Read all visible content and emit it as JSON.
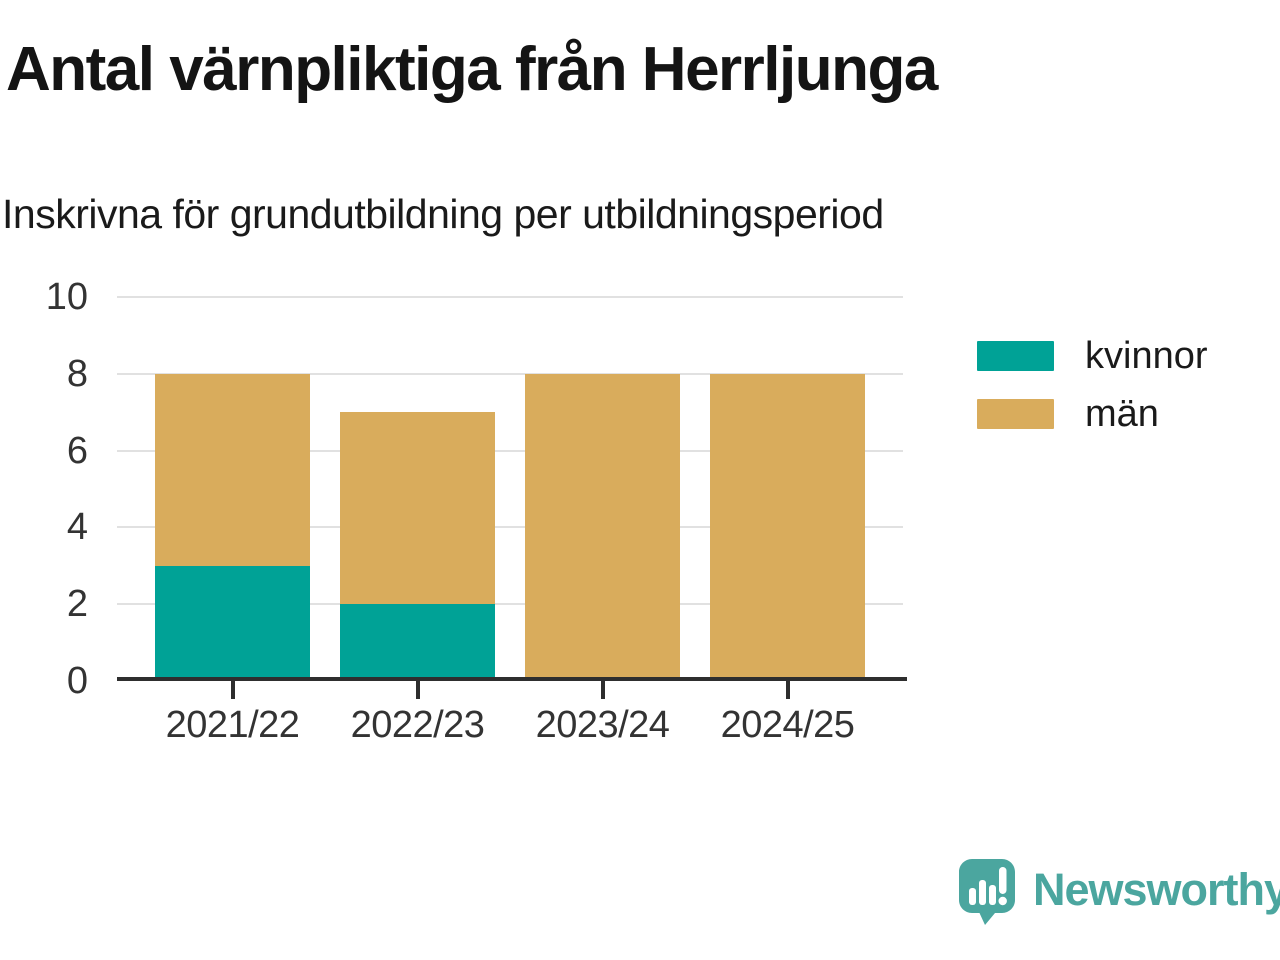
{
  "title": "Antal värnpliktiga från Herrljunga",
  "subtitle": "Inskrivna för grundutbildning per utbildningsperiod",
  "brand": {
    "name": "Newsworthy",
    "icon": "speech-bubble-bar-chart-icon",
    "color": "#4BA69F"
  },
  "colors": {
    "kvinnor": "#00A296",
    "man": "#D9AC5C",
    "axis": "#2E2E2E",
    "gridline": "#E1E1E1",
    "tick_label": "#333333",
    "title_text": "#141414",
    "background": "#FFFFFF",
    "brand": "#4BA69F"
  },
  "chart_data": {
    "type": "bar",
    "stacked": true,
    "title": "Antal värnpliktiga från Herrljunga",
    "subtitle": "Inskrivna för grundutbildning per utbildningsperiod",
    "categories": [
      "2021/22",
      "2022/23",
      "2023/24",
      "2024/25"
    ],
    "series": [
      {
        "name": "kvinnor",
        "color": "#00A296",
        "values": [
          3,
          2,
          0,
          0
        ]
      },
      {
        "name": "män",
        "color": "#D9AC5C",
        "values": [
          5,
          5,
          8,
          8
        ]
      }
    ],
    "stack_totals": [
      8,
      7,
      8,
      8
    ],
    "ylim": [
      0,
      10
    ],
    "y_ticks": [
      0,
      2,
      4,
      6,
      8,
      10
    ],
    "xlabel": "",
    "ylabel": "",
    "grid": "horizontal",
    "legend_position": "right"
  },
  "legend": {
    "items": [
      {
        "label": "kvinnor",
        "color": "#00A296"
      },
      {
        "label": "män",
        "color": "#D9AC5C"
      }
    ]
  }
}
